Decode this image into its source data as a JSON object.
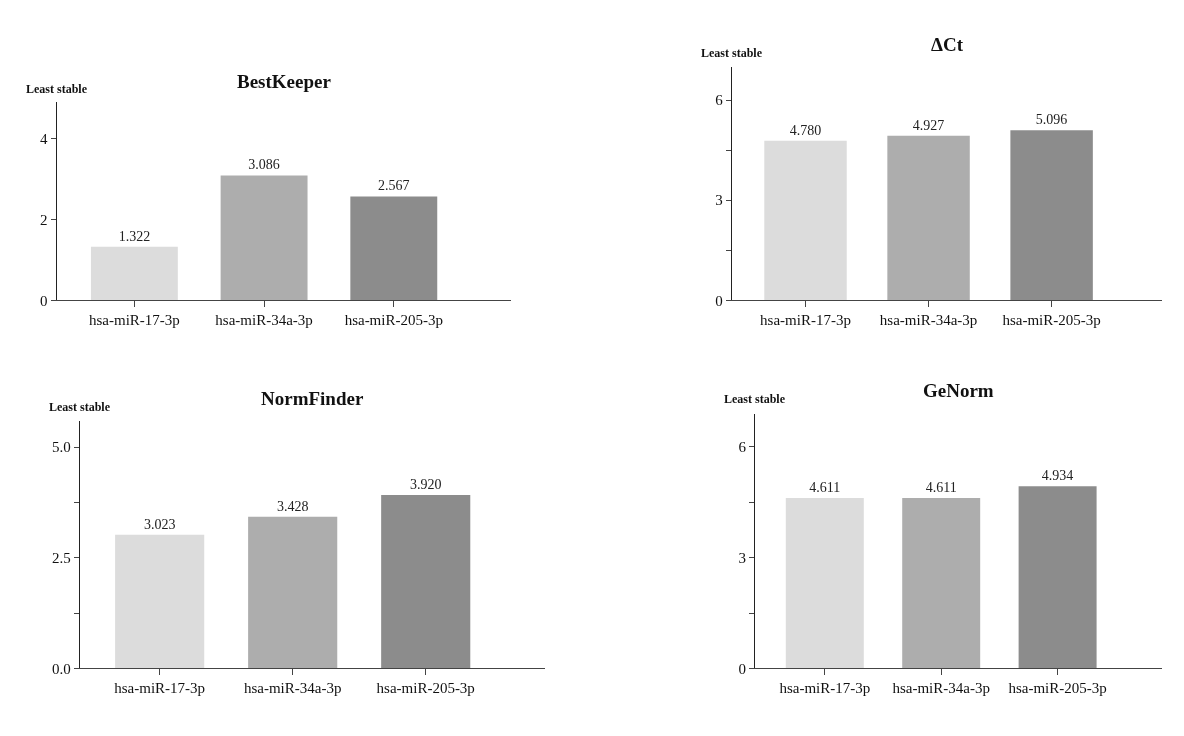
{
  "chart_data": [
    {
      "type": "bar",
      "title": "BestKeeper",
      "ylabel": "Least stable",
      "categories": [
        "hsa-miR-17-3p",
        "hsa-miR-34a-3p",
        "hsa-miR-205-3p"
      ],
      "values": [
        1.322,
        3.086,
        2.567
      ],
      "value_labels": [
        "1.322",
        "3.086",
        "2.567"
      ],
      "colors": [
        "#dcdcdc",
        "#adadad",
        "#8c8c8c"
      ],
      "ylim": [
        0,
        4.9
      ],
      "yticks": [
        0,
        2,
        4
      ]
    },
    {
      "type": "bar",
      "title": "ΔCt",
      "ylabel": "Least stable",
      "categories": [
        "hsa-miR-17-3p",
        "hsa-miR-34a-3p",
        "hsa-miR-205-3p"
      ],
      "values": [
        4.78,
        4.927,
        5.096
      ],
      "value_labels": [
        "4.780",
        "4.927",
        "5.096"
      ],
      "colors": [
        "#dcdcdc",
        "#adadad",
        "#8c8c8c"
      ],
      "ylim": [
        0,
        7
      ],
      "yticks": [
        0,
        {
          "value": 1.5,
          "label": null
        },
        3,
        {
          "value": 4.5,
          "label": null
        },
        6
      ]
    },
    {
      "type": "bar",
      "title": "NormFinder",
      "ylabel": "Least stable",
      "categories": [
        "hsa-miR-17-3p",
        "hsa-miR-34a-3p",
        "hsa-miR-205-3p"
      ],
      "values": [
        3.023,
        3.428,
        3.92
      ],
      "value_labels": [
        "3.023",
        "3.428",
        "3.920"
      ],
      "colors": [
        "#dcdcdc",
        "#adadad",
        "#8c8c8c"
      ],
      "ylim": [
        0,
        5.6
      ],
      "yticks": [
        {
          "value": 0,
          "label": "0.0"
        },
        {
          "value": 1.25,
          "label": null
        },
        {
          "value": 2.5,
          "label": "2.5"
        },
        {
          "value": 3.75,
          "label": null
        },
        {
          "value": 5,
          "label": "5.0"
        }
      ]
    },
    {
      "type": "bar",
      "title": "GeNorm",
      "ylabel": "Least stable",
      "categories": [
        "hsa-miR-17-3p",
        "hsa-miR-34a-3p",
        "hsa-miR-205-3p"
      ],
      "values": [
        4.611,
        4.611,
        4.934
      ],
      "value_labels": [
        "4.611",
        "4.611",
        "4.934"
      ],
      "colors": [
        "#dcdcdc",
        "#adadad",
        "#8c8c8c"
      ],
      "ylim": [
        0,
        6.9
      ],
      "yticks": [
        0,
        {
          "value": 1.5,
          "label": null
        },
        3,
        {
          "value": 4.5,
          "label": null
        },
        6
      ]
    }
  ]
}
